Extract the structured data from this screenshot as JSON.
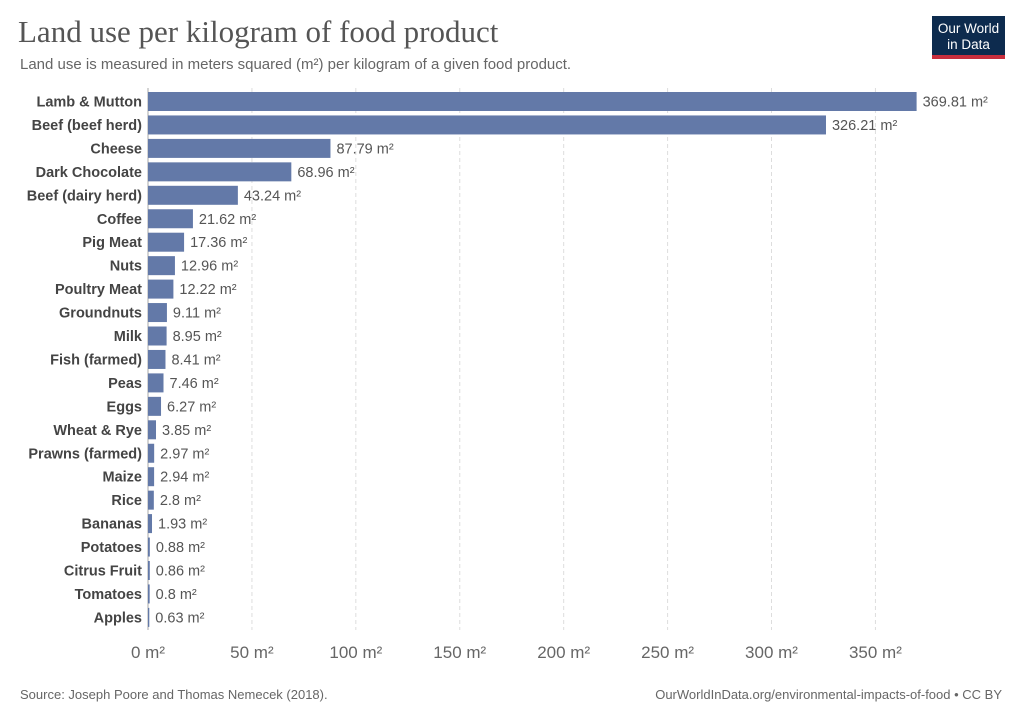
{
  "header": {
    "title": "Land use per kilogram of food product",
    "subtitle": "Land use is measured in meters squared (m²) per kilogram of a given food product."
  },
  "logo": {
    "line1": "Our World",
    "line2": "in Data",
    "background_color": "#0d2b4e",
    "accent_color": "#c82e3d"
  },
  "footer": {
    "source": "Source: Joseph Poore and Thomas Nemecek (2018).",
    "link": "OurWorldInData.org/environmental-impacts-of-food • CC BY"
  },
  "chart_data": {
    "type": "bar",
    "orientation": "horizontal",
    "title": "Land use per kilogram of food product",
    "subtitle": "Land use is measured in meters squared (m²) per kilogram of a given food product.",
    "unit": "m²",
    "categories": [
      "Lamb & Mutton",
      "Beef (beef herd)",
      "Cheese",
      "Dark Chocolate",
      "Beef (dairy herd)",
      "Coffee",
      "Pig Meat",
      "Nuts",
      "Poultry Meat",
      "Groundnuts",
      "Milk",
      "Fish (farmed)",
      "Peas",
      "Eggs",
      "Wheat & Rye",
      "Prawns (farmed)",
      "Maize",
      "Rice",
      "Bananas",
      "Potatoes",
      "Citrus Fruit",
      "Tomatoes",
      "Apples"
    ],
    "values": [
      369.81,
      326.21,
      87.79,
      68.96,
      43.24,
      21.62,
      17.36,
      12.96,
      12.22,
      9.11,
      8.95,
      8.41,
      7.46,
      6.27,
      3.85,
      2.97,
      2.94,
      2.8,
      1.93,
      0.88,
      0.86,
      0.8,
      0.63
    ],
    "value_labels": [
      "369.81 m²",
      "326.21 m²",
      "87.79 m²",
      "68.96 m²",
      "43.24 m²",
      "21.62 m²",
      "17.36 m²",
      "12.96 m²",
      "12.22 m²",
      "9.11 m²",
      "8.95 m²",
      "8.41 m²",
      "7.46 m²",
      "6.27 m²",
      "3.85 m²",
      "2.97 m²",
      "2.94 m²",
      "2.8 m²",
      "1.93 m²",
      "0.88 m²",
      "0.86 m²",
      "0.8 m²",
      "0.63 m²"
    ],
    "x_ticks": [
      0,
      50,
      100,
      150,
      200,
      250,
      300,
      350
    ],
    "x_tick_labels": [
      "0 m²",
      "50 m²",
      "100 m²",
      "150 m²",
      "200 m²",
      "250 m²",
      "300 m²",
      "350 m²"
    ],
    "xlim": [
      0,
      370
    ],
    "bar_color": "#6379a8",
    "grid": "vertical dashed"
  }
}
